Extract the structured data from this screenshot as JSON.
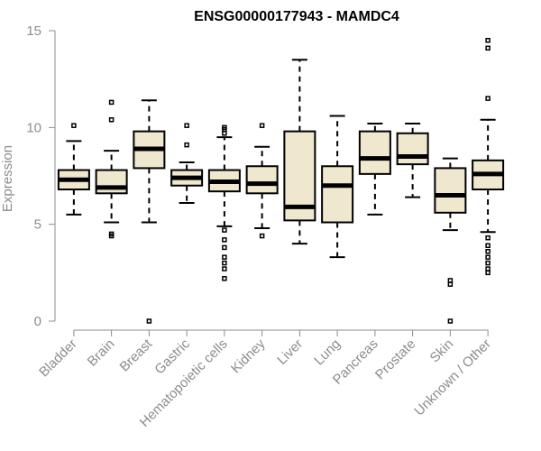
{
  "chart_data": {
    "type": "boxplot",
    "title": "ENSG00000177943 - MAMDC4",
    "xlabel": "",
    "ylabel": "Expression",
    "ylim": [
      0,
      15
    ],
    "yticks": [
      0,
      5,
      10,
      15
    ],
    "grid": false,
    "categories": [
      "Bladder",
      "Brain",
      "Breast",
      "Gastric",
      "Hematopoietic cells",
      "Kidney",
      "Liver",
      "Lung",
      "Pancreas",
      "Prostate",
      "Skin",
      "Unknown / Other"
    ],
    "boxes": [
      {
        "name": "Bladder",
        "whisker_low": 5.5,
        "q1": 6.8,
        "median": 7.3,
        "q3": 7.8,
        "whisker_high": 9.3,
        "outliers": [
          10.1
        ]
      },
      {
        "name": "Brain",
        "whisker_low": 5.1,
        "q1": 6.6,
        "median": 6.9,
        "q3": 7.8,
        "whisker_high": 8.8,
        "outliers": [
          4.4,
          4.5,
          10.4,
          11.3
        ]
      },
      {
        "name": "Breast",
        "whisker_low": 5.1,
        "q1": 7.9,
        "median": 8.9,
        "q3": 9.8,
        "whisker_high": 11.4,
        "outliers": [
          0.0
        ]
      },
      {
        "name": "Gastric",
        "whisker_low": 6.1,
        "q1": 7.0,
        "median": 7.4,
        "q3": 7.8,
        "whisker_high": 8.2,
        "outliers": [
          9.1,
          10.1
        ]
      },
      {
        "name": "Hematopoietic cells",
        "whisker_low": 4.9,
        "q1": 6.7,
        "median": 7.2,
        "q3": 7.8,
        "whisker_high": 9.5,
        "outliers": [
          2.2,
          2.7,
          3.0,
          3.3,
          3.8,
          4.2,
          4.7,
          9.7,
          9.9,
          10.0
        ]
      },
      {
        "name": "Kidney",
        "whisker_low": 4.8,
        "q1": 6.6,
        "median": 7.1,
        "q3": 8.0,
        "whisker_high": 9.0,
        "outliers": [
          4.4,
          10.1
        ]
      },
      {
        "name": "Liver",
        "whisker_low": 4.0,
        "q1": 5.2,
        "median": 5.9,
        "q3": 9.8,
        "whisker_high": 13.5,
        "outliers": []
      },
      {
        "name": "Lung",
        "whisker_low": 3.3,
        "q1": 5.1,
        "median": 7.0,
        "q3": 8.0,
        "whisker_high": 10.6,
        "outliers": []
      },
      {
        "name": "Pancreas",
        "whisker_low": 5.5,
        "q1": 7.6,
        "median": 8.4,
        "q3": 9.8,
        "whisker_high": 10.2,
        "outliers": []
      },
      {
        "name": "Prostate",
        "whisker_low": 6.4,
        "q1": 8.1,
        "median": 8.5,
        "q3": 9.7,
        "whisker_high": 10.2,
        "outliers": []
      },
      {
        "name": "Skin",
        "whisker_low": 4.7,
        "q1": 5.6,
        "median": 6.5,
        "q3": 7.9,
        "whisker_high": 8.4,
        "outliers": [
          0.0,
          1.9,
          2.1
        ]
      },
      {
        "name": "Unknown / Other",
        "whisker_low": 4.6,
        "q1": 6.8,
        "median": 7.6,
        "q3": 8.3,
        "whisker_high": 10.4,
        "outliers": [
          2.5,
          2.7,
          3.0,
          3.3,
          3.6,
          3.9,
          4.3,
          11.5,
          14.1,
          14.5
        ]
      }
    ],
    "colors": {
      "box_fill": "#efe8cf",
      "stroke": "#000000",
      "axis": "#8c8c8c"
    }
  }
}
